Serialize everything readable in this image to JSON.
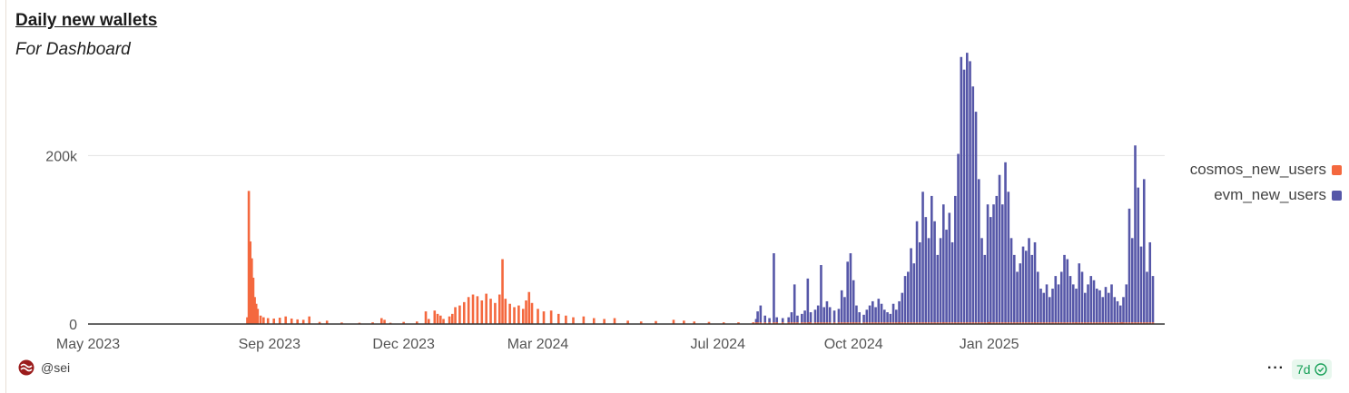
{
  "header": {
    "title": "Daily new wallets",
    "subtitle": "For Dashboard"
  },
  "footer": {
    "user": "@sei",
    "more_icon": "ellipsis-icon",
    "period_label": "7d",
    "period_icon": "check-circle-icon"
  },
  "colors": {
    "cosmos": "#f4683e",
    "evm": "#5657a8",
    "axis": "#333333",
    "grid": "#e2e2e2"
  },
  "chart_data": {
    "type": "bar",
    "stacked": true,
    "title": "Daily new wallets",
    "subtitle": "For Dashboard",
    "x_range": [
      "2023-05-01",
      "2025-04-30"
    ],
    "ylim": [
      0,
      320000
    ],
    "y_ticks": [
      {
        "value": 0,
        "label": "0"
      },
      {
        "value": 200000,
        "label": "200k"
      }
    ],
    "x_ticks": [
      {
        "date": "2023-05-01",
        "label": "May 2023"
      },
      {
        "date": "2023-09-01",
        "label": "Sep 2023"
      },
      {
        "date": "2023-12-01",
        "label": "Dec 2023"
      },
      {
        "date": "2024-03-01",
        "label": "Mar 2024"
      },
      {
        "date": "2024-07-01",
        "label": "Jul 2024"
      },
      {
        "date": "2024-10-01",
        "label": "Oct 2024"
      },
      {
        "date": "2025-01-01",
        "label": "Jan 2025"
      }
    ],
    "grid": "horizontal",
    "legend_position": "right",
    "series": [
      {
        "name": "cosmos_new_users",
        "color": "#f4683e",
        "points": [
          {
            "x": "2023-08-17",
            "y": 8000
          },
          {
            "x": "2023-08-18",
            "y": 158000
          },
          {
            "x": "2023-08-19",
            "y": 98000
          },
          {
            "x": "2023-08-20",
            "y": 78000
          },
          {
            "x": "2023-08-21",
            "y": 55000
          },
          {
            "x": "2023-08-22",
            "y": 32000
          },
          {
            "x": "2023-08-23",
            "y": 24000
          },
          {
            "x": "2023-08-24",
            "y": 18000
          },
          {
            "x": "2023-08-26",
            "y": 10000
          },
          {
            "x": "2023-08-28",
            "y": 8000
          },
          {
            "x": "2023-08-31",
            "y": 7000
          },
          {
            "x": "2023-09-04",
            "y": 6500
          },
          {
            "x": "2023-09-08",
            "y": 7500
          },
          {
            "x": "2023-09-12",
            "y": 9000
          },
          {
            "x": "2023-09-16",
            "y": 6500
          },
          {
            "x": "2023-09-20",
            "y": 5500
          },
          {
            "x": "2023-09-24",
            "y": 5000
          },
          {
            "x": "2023-09-28",
            "y": 9000
          },
          {
            "x": "2023-10-05",
            "y": 2500
          },
          {
            "x": "2023-10-10",
            "y": 4000
          },
          {
            "x": "2023-10-20",
            "y": 1800
          },
          {
            "x": "2023-11-01",
            "y": 1500
          },
          {
            "x": "2023-11-10",
            "y": 2000
          },
          {
            "x": "2023-11-16",
            "y": 7000
          },
          {
            "x": "2023-11-18",
            "y": 5000
          },
          {
            "x": "2023-11-22",
            "y": 1500
          },
          {
            "x": "2023-12-01",
            "y": 2500
          },
          {
            "x": "2023-12-10",
            "y": 3000
          },
          {
            "x": "2023-12-16",
            "y": 15000
          },
          {
            "x": "2023-12-18",
            "y": 6000
          },
          {
            "x": "2023-12-22",
            "y": 16000
          },
          {
            "x": "2023-12-24",
            "y": 12000
          },
          {
            "x": "2023-12-26",
            "y": 10000
          },
          {
            "x": "2023-12-28",
            "y": 6000
          },
          {
            "x": "2024-01-01",
            "y": 9000
          },
          {
            "x": "2024-01-03",
            "y": 12000
          },
          {
            "x": "2024-01-05",
            "y": 20000
          },
          {
            "x": "2024-01-08",
            "y": 22000
          },
          {
            "x": "2024-01-11",
            "y": 26000
          },
          {
            "x": "2024-01-14",
            "y": 32000
          },
          {
            "x": "2024-01-17",
            "y": 35000
          },
          {
            "x": "2024-01-20",
            "y": 33000
          },
          {
            "x": "2024-01-23",
            "y": 28000
          },
          {
            "x": "2024-01-26",
            "y": 36000
          },
          {
            "x": "2024-01-29",
            "y": 30000
          },
          {
            "x": "2024-02-01",
            "y": 25000
          },
          {
            "x": "2024-02-04",
            "y": 35000
          },
          {
            "x": "2024-02-06",
            "y": 77000
          },
          {
            "x": "2024-02-08",
            "y": 30000
          },
          {
            "x": "2024-02-11",
            "y": 24000
          },
          {
            "x": "2024-02-14",
            "y": 20000
          },
          {
            "x": "2024-02-17",
            "y": 22000
          },
          {
            "x": "2024-02-20",
            "y": 18000
          },
          {
            "x": "2024-02-22",
            "y": 28000
          },
          {
            "x": "2024-02-24",
            "y": 38000
          },
          {
            "x": "2024-02-26",
            "y": 25000
          },
          {
            "x": "2024-03-01",
            "y": 18000
          },
          {
            "x": "2024-03-05",
            "y": 15000
          },
          {
            "x": "2024-03-10",
            "y": 16000
          },
          {
            "x": "2024-03-15",
            "y": 12000
          },
          {
            "x": "2024-03-20",
            "y": 10000
          },
          {
            "x": "2024-03-25",
            "y": 8000
          },
          {
            "x": "2024-04-01",
            "y": 9000
          },
          {
            "x": "2024-04-08",
            "y": 7000
          },
          {
            "x": "2024-04-15",
            "y": 6000
          },
          {
            "x": "2024-04-22",
            "y": 7000
          },
          {
            "x": "2024-05-01",
            "y": 4000
          },
          {
            "x": "2024-05-10",
            "y": 3000
          },
          {
            "x": "2024-05-20",
            "y": 3500
          },
          {
            "x": "2024-06-01",
            "y": 5000
          },
          {
            "x": "2024-06-08",
            "y": 4000
          },
          {
            "x": "2024-06-15",
            "y": 3000
          },
          {
            "x": "2024-06-25",
            "y": 2500
          },
          {
            "x": "2024-07-05",
            "y": 2000
          },
          {
            "x": "2024-07-15",
            "y": 2000
          },
          {
            "x": "2024-07-25",
            "y": 2000
          },
          {
            "x": "2024-08-10",
            "y": 2000
          },
          {
            "x": "2024-09-01",
            "y": 2000
          },
          {
            "x": "2024-10-01",
            "y": 2000
          },
          {
            "x": "2024-11-01",
            "y": 3000
          },
          {
            "x": "2024-12-01",
            "y": 3000
          },
          {
            "x": "2025-01-01",
            "y": 2500
          },
          {
            "x": "2025-02-01",
            "y": 2000
          },
          {
            "x": "2025-03-01",
            "y": 2000
          },
          {
            "x": "2025-04-01",
            "y": 2000
          }
        ]
      },
      {
        "name": "evm_new_users",
        "color": "#5657a8",
        "points": [
          {
            "x": "2024-07-27",
            "y": 4000
          },
          {
            "x": "2024-07-28",
            "y": 13000
          },
          {
            "x": "2024-07-30",
            "y": 20000
          },
          {
            "x": "2024-08-02",
            "y": 8000
          },
          {
            "x": "2024-08-05",
            "y": 5000
          },
          {
            "x": "2024-08-08",
            "y": 82000
          },
          {
            "x": "2024-08-10",
            "y": 6000
          },
          {
            "x": "2024-08-14",
            "y": 5000
          },
          {
            "x": "2024-08-18",
            "y": 6000
          },
          {
            "x": "2024-08-20",
            "y": 12000
          },
          {
            "x": "2024-08-22",
            "y": 45000
          },
          {
            "x": "2024-08-24",
            "y": 8000
          },
          {
            "x": "2024-08-27",
            "y": 10000
          },
          {
            "x": "2024-08-29",
            "y": 14000
          },
          {
            "x": "2024-08-31",
            "y": 52000
          },
          {
            "x": "2024-09-02",
            "y": 12000
          },
          {
            "x": "2024-09-05",
            "y": 15000
          },
          {
            "x": "2024-09-07",
            "y": 20000
          },
          {
            "x": "2024-09-09",
            "y": 68000
          },
          {
            "x": "2024-09-11",
            "y": 18000
          },
          {
            "x": "2024-09-13",
            "y": 25000
          },
          {
            "x": "2024-09-15",
            "y": 18000
          },
          {
            "x": "2024-09-18",
            "y": 14000
          },
          {
            "x": "2024-09-21",
            "y": 16000
          },
          {
            "x": "2024-09-23",
            "y": 38000
          },
          {
            "x": "2024-09-25",
            "y": 30000
          },
          {
            "x": "2024-09-27",
            "y": 72000
          },
          {
            "x": "2024-09-29",
            "y": 82000
          },
          {
            "x": "2024-10-01",
            "y": 50000
          },
          {
            "x": "2024-10-03",
            "y": 20000
          },
          {
            "x": "2024-10-05",
            "y": 12000
          },
          {
            "x": "2024-10-08",
            "y": 9000
          },
          {
            "x": "2024-10-10",
            "y": 15000
          },
          {
            "x": "2024-10-12",
            "y": 20000
          },
          {
            "x": "2024-10-14",
            "y": 25000
          },
          {
            "x": "2024-10-16",
            "y": 18000
          },
          {
            "x": "2024-10-18",
            "y": 28000
          },
          {
            "x": "2024-10-20",
            "y": 22000
          },
          {
            "x": "2024-10-22",
            "y": 15000
          },
          {
            "x": "2024-10-24",
            "y": 12000
          },
          {
            "x": "2024-10-26",
            "y": 10000
          },
          {
            "x": "2024-10-28",
            "y": 22000
          },
          {
            "x": "2024-10-30",
            "y": 15000
          },
          {
            "x": "2024-11-01",
            "y": 25000
          },
          {
            "x": "2024-11-03",
            "y": 35000
          },
          {
            "x": "2024-11-05",
            "y": 55000
          },
          {
            "x": "2024-11-07",
            "y": 60000
          },
          {
            "x": "2024-11-09",
            "y": 88000
          },
          {
            "x": "2024-11-11",
            "y": 70000
          },
          {
            "x": "2024-11-13",
            "y": 120000
          },
          {
            "x": "2024-11-15",
            "y": 95000
          },
          {
            "x": "2024-11-17",
            "y": 155000
          },
          {
            "x": "2024-11-19",
            "y": 125000
          },
          {
            "x": "2024-11-21",
            "y": 100000
          },
          {
            "x": "2024-11-23",
            "y": 150000
          },
          {
            "x": "2024-11-25",
            "y": 120000
          },
          {
            "x": "2024-11-27",
            "y": 80000
          },
          {
            "x": "2024-11-29",
            "y": 100000
          },
          {
            "x": "2024-12-01",
            "y": 140000
          },
          {
            "x": "2024-12-03",
            "y": 110000
          },
          {
            "x": "2024-12-05",
            "y": 130000
          },
          {
            "x": "2024-12-07",
            "y": 95000
          },
          {
            "x": "2024-12-09",
            "y": 150000
          },
          {
            "x": "2024-12-11",
            "y": 200000
          },
          {
            "x": "2024-12-13",
            "y": 315000
          },
          {
            "x": "2024-12-15",
            "y": 300000
          },
          {
            "x": "2024-12-17",
            "y": 320000
          },
          {
            "x": "2024-12-19",
            "y": 310000
          },
          {
            "x": "2024-12-21",
            "y": 280000
          },
          {
            "x": "2024-12-23",
            "y": 250000
          },
          {
            "x": "2024-12-25",
            "y": 170000
          },
          {
            "x": "2024-12-27",
            "y": 100000
          },
          {
            "x": "2024-12-29",
            "y": 80000
          },
          {
            "x": "2024-12-31",
            "y": 140000
          },
          {
            "x": "2025-01-02",
            "y": 125000
          },
          {
            "x": "2025-01-04",
            "y": 140000
          },
          {
            "x": "2025-01-06",
            "y": 150000
          },
          {
            "x": "2025-01-08",
            "y": 175000
          },
          {
            "x": "2025-01-10",
            "y": 140000
          },
          {
            "x": "2025-01-12",
            "y": 190000
          },
          {
            "x": "2025-01-14",
            "y": 155000
          },
          {
            "x": "2025-01-16",
            "y": 100000
          },
          {
            "x": "2025-01-18",
            "y": 80000
          },
          {
            "x": "2025-01-20",
            "y": 60000
          },
          {
            "x": "2025-01-22",
            "y": 70000
          },
          {
            "x": "2025-01-24",
            "y": 90000
          },
          {
            "x": "2025-01-26",
            "y": 85000
          },
          {
            "x": "2025-01-28",
            "y": 100000
          },
          {
            "x": "2025-01-30",
            "y": 80000
          },
          {
            "x": "2025-02-01",
            "y": 95000
          },
          {
            "x": "2025-02-03",
            "y": 60000
          },
          {
            "x": "2025-02-05",
            "y": 40000
          },
          {
            "x": "2025-02-07",
            "y": 35000
          },
          {
            "x": "2025-02-09",
            "y": 45000
          },
          {
            "x": "2025-02-11",
            "y": 30000
          },
          {
            "x": "2025-02-13",
            "y": 40000
          },
          {
            "x": "2025-02-15",
            "y": 55000
          },
          {
            "x": "2025-02-17",
            "y": 45000
          },
          {
            "x": "2025-02-19",
            "y": 60000
          },
          {
            "x": "2025-02-21",
            "y": 80000
          },
          {
            "x": "2025-02-23",
            "y": 75000
          },
          {
            "x": "2025-02-25",
            "y": 55000
          },
          {
            "x": "2025-02-27",
            "y": 45000
          },
          {
            "x": "2025-03-01",
            "y": 40000
          },
          {
            "x": "2025-03-03",
            "y": 70000
          },
          {
            "x": "2025-03-05",
            "y": 60000
          },
          {
            "x": "2025-03-07",
            "y": 35000
          },
          {
            "x": "2025-03-09",
            "y": 45000
          },
          {
            "x": "2025-03-11",
            "y": 55000
          },
          {
            "x": "2025-03-13",
            "y": 50000
          },
          {
            "x": "2025-03-15",
            "y": 40000
          },
          {
            "x": "2025-03-17",
            "y": 38000
          },
          {
            "x": "2025-03-19",
            "y": 30000
          },
          {
            "x": "2025-03-21",
            "y": 42000
          },
          {
            "x": "2025-03-23",
            "y": 35000
          },
          {
            "x": "2025-03-25",
            "y": 45000
          },
          {
            "x": "2025-03-27",
            "y": 30000
          },
          {
            "x": "2025-03-29",
            "y": 25000
          },
          {
            "x": "2025-03-31",
            "y": 20000
          },
          {
            "x": "2025-04-02",
            "y": 30000
          },
          {
            "x": "2025-04-04",
            "y": 45000
          },
          {
            "x": "2025-04-06",
            "y": 135000
          },
          {
            "x": "2025-04-08",
            "y": 100000
          },
          {
            "x": "2025-04-10",
            "y": 210000
          },
          {
            "x": "2025-04-12",
            "y": 160000
          },
          {
            "x": "2025-04-14",
            "y": 90000
          },
          {
            "x": "2025-04-16",
            "y": 170000
          },
          {
            "x": "2025-04-18",
            "y": 60000
          },
          {
            "x": "2025-04-20",
            "y": 95000
          },
          {
            "x": "2025-04-22",
            "y": 55000
          }
        ]
      }
    ]
  }
}
